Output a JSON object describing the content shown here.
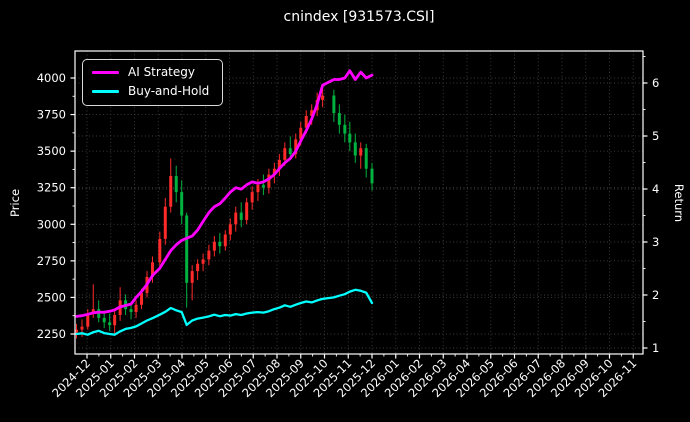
{
  "figure": {
    "title": "cnindex [931573.CSI]",
    "left_axis_label": "Price",
    "right_axis_label": "Return",
    "background": "#000000"
  },
  "legend": {
    "items": [
      {
        "label": "AI Strategy",
        "color": "#ff00ff"
      },
      {
        "label": "Buy-and-Hold",
        "color": "#00ffff"
      }
    ]
  },
  "chart_data": {
    "type": "candlestick+line",
    "title": "cnindex [931573.CSI]",
    "grid": "dotted",
    "legend_position": "upper-left",
    "background": "#000000",
    "colors": {
      "candle_up": "#ff2a2a",
      "candle_down": "#00b341",
      "ai_strategy": "#ff00ff",
      "buy_and_hold": "#00ffff",
      "spine": "#ffffff",
      "grid": "#3d3d3d",
      "tick_text": "#ffffff"
    },
    "x_tick_labels": [
      "2024-12",
      "2025-01",
      "2025-02",
      "2025-03",
      "2025-04",
      "2025-05",
      "2025-06",
      "2025-07",
      "2025-08",
      "2025-09",
      "2025-10",
      "2025-11",
      "2025-12",
      "2026-01",
      "2026-02",
      "2026-03",
      "2026-04",
      "2026-05",
      "2026-06",
      "2026-07",
      "2026-08",
      "2026-09",
      "2026-10",
      "2026-11"
    ],
    "price_axis": {
      "label": "Price",
      "ticks": [
        2250,
        2500,
        2750,
        3000,
        3250,
        3500,
        3750,
        4000
      ],
      "ylim": [
        2113,
        4185
      ]
    },
    "return_axis": {
      "label": "Return",
      "ticks": [
        1,
        2,
        3,
        4,
        5,
        6
      ],
      "ylim": [
        0.89,
        6.6
      ]
    },
    "dates": [
      "2024-11-18",
      "2024-11-25",
      "2024-12-02",
      "2024-12-09",
      "2024-12-16",
      "2024-12-23",
      "2024-12-30",
      "2025-01-06",
      "2025-01-13",
      "2025-01-20",
      "2025-01-27",
      "2025-02-03",
      "2025-02-10",
      "2025-02-17",
      "2025-02-24",
      "2025-03-03",
      "2025-03-10",
      "2025-03-17",
      "2025-03-24",
      "2025-03-31",
      "2025-04-07",
      "2025-04-14",
      "2025-04-21",
      "2025-04-28",
      "2025-05-05",
      "2025-05-12",
      "2025-05-19",
      "2025-05-26",
      "2025-06-02",
      "2025-06-09",
      "2025-06-16",
      "2025-06-23",
      "2025-06-30",
      "2025-07-07",
      "2025-07-14",
      "2025-07-21",
      "2025-07-28",
      "2025-08-04",
      "2025-08-11",
      "2025-08-18",
      "2025-08-25",
      "2025-09-01",
      "2025-09-08",
      "2025-09-15",
      "2025-09-22",
      "2025-09-29",
      "2025-10-13",
      "2025-10-20",
      "2025-10-27",
      "2025-11-03",
      "2025-11-10",
      "2025-11-17",
      "2025-11-24",
      "2025-12-01"
    ],
    "candles_ohlc": [
      [
        2260,
        2320,
        2220,
        2280
      ],
      [
        2280,
        2350,
        2230,
        2300
      ],
      [
        2300,
        2420,
        2280,
        2390
      ],
      [
        2390,
        2590,
        2360,
        2420
      ],
      [
        2420,
        2480,
        2330,
        2360
      ],
      [
        2360,
        2410,
        2290,
        2330
      ],
      [
        2330,
        2390,
        2270,
        2310
      ],
      [
        2310,
        2420,
        2250,
        2380
      ],
      [
        2380,
        2570,
        2340,
        2480
      ],
      [
        2480,
        2520,
        2380,
        2420
      ],
      [
        2420,
        2470,
        2350,
        2400
      ],
      [
        2400,
        2480,
        2360,
        2450
      ],
      [
        2450,
        2560,
        2420,
        2530
      ],
      [
        2530,
        2680,
        2500,
        2640
      ],
      [
        2640,
        2780,
        2600,
        2740
      ],
      [
        2740,
        2950,
        2700,
        2900
      ],
      [
        2900,
        3180,
        2860,
        3120
      ],
      [
        3120,
        3450,
        3080,
        3330
      ],
      [
        3330,
        3400,
        3150,
        3220
      ],
      [
        3220,
        3300,
        3000,
        3060
      ],
      [
        3060,
        3080,
        2430,
        2600
      ],
      [
        2600,
        2720,
        2480,
        2680
      ],
      [
        2680,
        2760,
        2620,
        2730
      ],
      [
        2730,
        2800,
        2680,
        2760
      ],
      [
        2760,
        2860,
        2720,
        2820
      ],
      [
        2820,
        2920,
        2780,
        2880
      ],
      [
        2880,
        2940,
        2800,
        2850
      ],
      [
        2850,
        2960,
        2820,
        2930
      ],
      [
        2930,
        3040,
        2890,
        3000
      ],
      [
        3000,
        3120,
        2950,
        3080
      ],
      [
        3080,
        3150,
        2980,
        3030
      ],
      [
        3030,
        3180,
        3000,
        3150
      ],
      [
        3150,
        3260,
        3100,
        3220
      ],
      [
        3220,
        3310,
        3160,
        3270
      ],
      [
        3270,
        3340,
        3200,
        3250
      ],
      [
        3250,
        3380,
        3210,
        3340
      ],
      [
        3340,
        3420,
        3280,
        3380
      ],
      [
        3380,
        3480,
        3330,
        3440
      ],
      [
        3440,
        3560,
        3400,
        3520
      ],
      [
        3520,
        3600,
        3440,
        3480
      ],
      [
        3480,
        3620,
        3450,
        3580
      ],
      [
        3580,
        3700,
        3540,
        3660
      ],
      [
        3660,
        3780,
        3620,
        3740
      ],
      [
        3740,
        3820,
        3680,
        3780
      ],
      [
        3780,
        3900,
        3740,
        3850
      ],
      [
        3850,
        3950,
        3800,
        3880
      ],
      [
        3880,
        3920,
        3700,
        3760
      ],
      [
        3760,
        3820,
        3620,
        3680
      ],
      [
        3680,
        3750,
        3560,
        3620
      ],
      [
        3620,
        3700,
        3500,
        3560
      ],
      [
        3560,
        3620,
        3420,
        3470
      ],
      [
        3470,
        3560,
        3380,
        3520
      ],
      [
        3520,
        3550,
        3320,
        3380
      ],
      [
        3380,
        3420,
        3230,
        3280
      ]
    ],
    "series": [
      {
        "name": "AI Strategy",
        "color": "#ff00ff",
        "axis": "price",
        "values": [
          2370,
          2375,
          2385,
          2395,
          2400,
          2398,
          2405,
          2415,
          2435,
          2445,
          2455,
          2500,
          2540,
          2590,
          2650,
          2700,
          2760,
          2820,
          2860,
          2890,
          2905,
          2920,
          2960,
          3020,
          3080,
          3120,
          3140,
          3180,
          3220,
          3250,
          3240,
          3270,
          3290,
          3280,
          3290,
          3310,
          3340,
          3380,
          3420,
          3450,
          3500,
          3570,
          3640,
          3720,
          3820,
          3950,
          3990,
          3990,
          4000,
          4050,
          3990,
          4040,
          4000,
          4020
        ]
      },
      {
        "name": "Buy-and-Hold",
        "color": "#00ffff",
        "axis": "price",
        "values": [
          2250,
          2255,
          2245,
          2262,
          2272,
          2256,
          2250,
          2245,
          2268,
          2285,
          2292,
          2302,
          2322,
          2342,
          2358,
          2382,
          2402,
          2428,
          2412,
          2400,
          2312,
          2342,
          2355,
          2362,
          2370,
          2382,
          2372,
          2380,
          2376,
          2386,
          2380,
          2390,
          2396,
          2400,
          2396,
          2406,
          2420,
          2430,
          2446,
          2436,
          2450,
          2462,
          2472,
          2466,
          2480,
          2490,
          2500,
          2512,
          2522,
          2540,
          2552,
          2545,
          2532,
          2462
        ]
      }
    ]
  }
}
